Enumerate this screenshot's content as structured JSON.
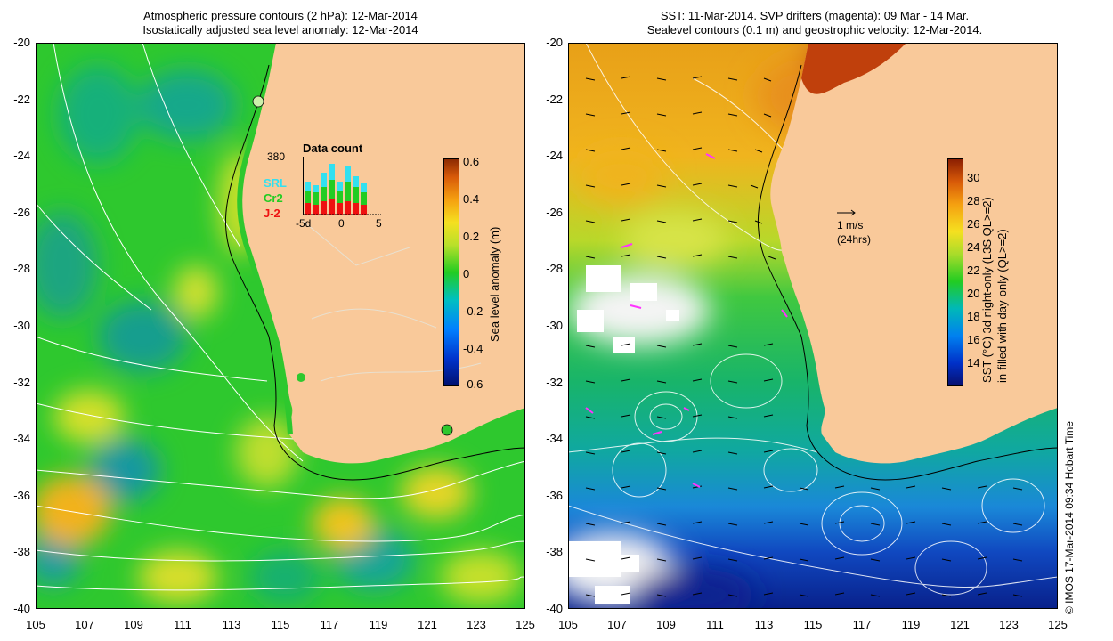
{
  "left_panel": {
    "title_line1": "Atmospheric pressure contours (2 hPa): 12-Mar-2014",
    "title_line2": "Isostatically adjusted sea level anomaly: 12-Mar-2014",
    "colorbar_label": "Sea level anomaly (m)",
    "colorbar_ticks": [
      "0.6",
      "0.4",
      "0.2",
      "0",
      "-0.2",
      "-0.4",
      "-0.6"
    ],
    "inset": {
      "title": "Data count",
      "max_label": "380",
      "x_ticks": [
        "-5d",
        "0",
        "5"
      ],
      "series": [
        {
          "name": "SRL",
          "color": "#33e0f0"
        },
        {
          "name": "Cr2",
          "color": "#22cc22"
        },
        {
          "name": "J-2",
          "color": "#ee1111"
        }
      ]
    }
  },
  "right_panel": {
    "title_line1": "SST: 11-Mar-2014. SVP drifters (magenta): 09 Mar - 14 Mar.",
    "title_line2": "Sealevel contours (0.1 m) and geostrophic velocity: 12-Mar-2014.",
    "colorbar_label_line1": "SST (°C) 3d night-only (L3S QL>=2)",
    "colorbar_label_line2": "in-filled with day-only (QL>=2)",
    "colorbar_ticks": [
      "30",
      "28",
      "26",
      "24",
      "22",
      "20",
      "18",
      "16",
      "14"
    ],
    "velocity_scale": "1 m/s",
    "velocity_scale_note": "(24hrs)"
  },
  "axes": {
    "y_ticks": [
      "-20",
      "-22",
      "-24",
      "-26",
      "-28",
      "-30",
      "-32",
      "-34",
      "-36",
      "-38",
      "-40"
    ],
    "x_ticks": [
      "105",
      "107",
      "109",
      "111",
      "113",
      "115",
      "117",
      "119",
      "121",
      "123",
      "125"
    ]
  },
  "credit": "© IMOS 17-Mar-2014 09:34 Hobart Time",
  "colors": {
    "land": "#f9c99a",
    "ocean_green": "#22cc22",
    "contour": "#ffffff"
  }
}
